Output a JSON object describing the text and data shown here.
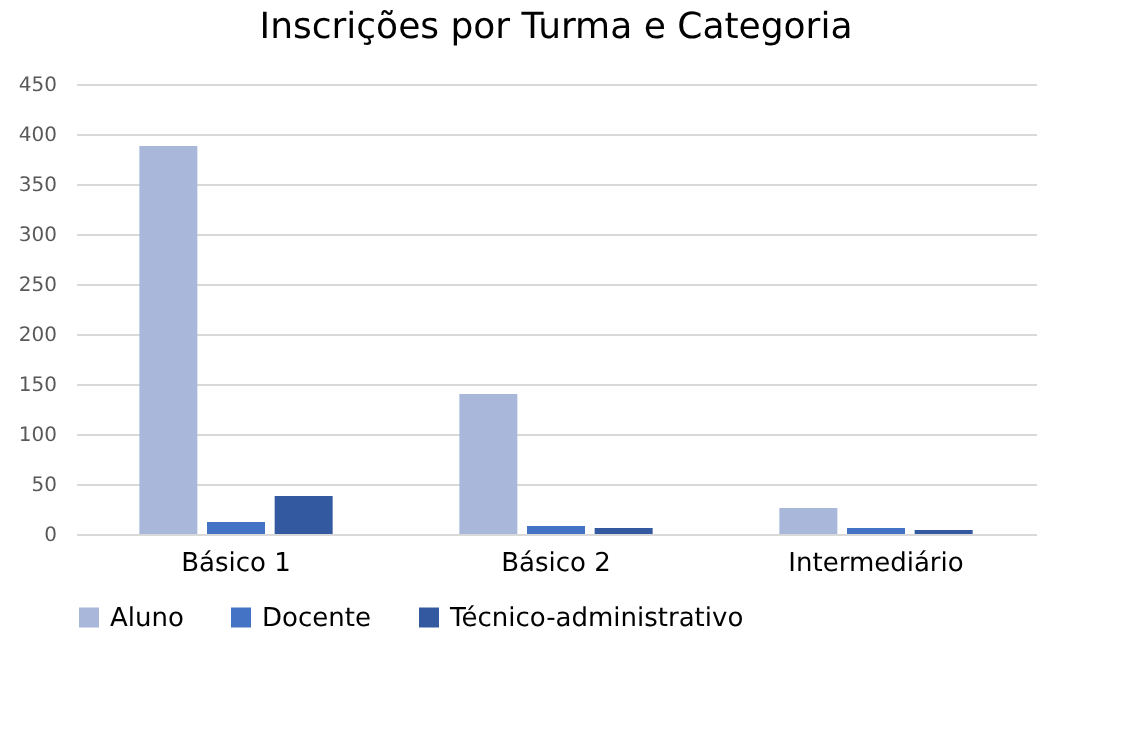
{
  "chart_data": {
    "type": "bar",
    "title": "Inscrições por Turma e Categoria",
    "categories": [
      "Básico 1",
      "Básico 2",
      "Intermediário"
    ],
    "series": [
      {
        "name": "Aluno",
        "color": "#a9b7da",
        "values": [
          388,
          140,
          26
        ]
      },
      {
        "name": "Docente",
        "color": "#4472c4",
        "values": [
          12,
          8,
          6
        ]
      },
      {
        "name": "Técnico-administrativo",
        "color": "#335aa1",
        "values": [
          38,
          6,
          4
        ]
      }
    ],
    "ylim": [
      0,
      450
    ],
    "yticks": [
      0,
      50,
      100,
      150,
      200,
      250,
      300,
      350,
      400,
      450
    ],
    "grid": "y",
    "legend": "bottom"
  }
}
